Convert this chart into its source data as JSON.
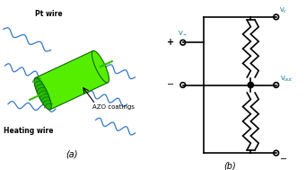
{
  "bg_color": "#ffffff",
  "panel_a_label": "(a)",
  "panel_b_label": "(b)",
  "pt_wire_label": "Pt wire",
  "heating_wire_label": "Heating wire",
  "azo_label": "AZO coatings",
  "vc_label": "V_c",
  "vminus_label": "V_-",
  "vout_label": "V_{out}",
  "gnd_label": "-",
  "plus_label": "+",
  "minus_label": "-",
  "cylinder_color": "#55ee00",
  "cylinder_shadow": "#22bb00",
  "cylinder_dark": "#116600",
  "wire_color": "#3377cc",
  "circuit_color": "#000000",
  "label_color": "#000000",
  "teal_color": "#007799"
}
